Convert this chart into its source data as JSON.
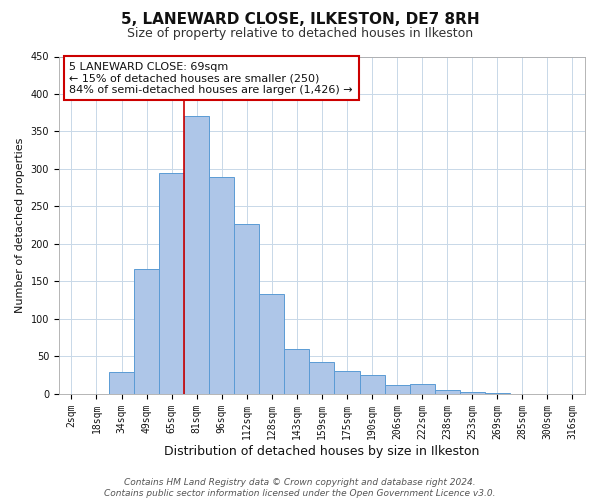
{
  "title": "5, LANEWARD CLOSE, ILKESTON, DE7 8RH",
  "subtitle": "Size of property relative to detached houses in Ilkeston",
  "xlabel": "Distribution of detached houses by size in Ilkeston",
  "ylabel": "Number of detached properties",
  "categories": [
    "2sqm",
    "18sqm",
    "34sqm",
    "49sqm",
    "65sqm",
    "81sqm",
    "96sqm",
    "112sqm",
    "128sqm",
    "143sqm",
    "159sqm",
    "175sqm",
    "190sqm",
    "206sqm",
    "222sqm",
    "238sqm",
    "253sqm",
    "269sqm",
    "285sqm",
    "300sqm",
    "316sqm"
  ],
  "values": [
    0,
    0,
    29,
    167,
    295,
    370,
    289,
    226,
    133,
    60,
    43,
    30,
    25,
    12,
    13,
    5,
    3,
    1,
    0,
    0,
    0
  ],
  "bar_color": "#aec6e8",
  "bar_edge_color": "#5b9bd5",
  "background_color": "#ffffff",
  "grid_color": "#c8d8e8",
  "vline_x_index": 4.5,
  "vline_color": "#cc0000",
  "annotation_line1": "5 LANEWARD CLOSE: 69sqm",
  "annotation_line2": "← 15% of detached houses are smaller (250)",
  "annotation_line3": "84% of semi-detached houses are larger (1,426) →",
  "annotation_box_color": "#ffffff",
  "annotation_box_edge": "#cc0000",
  "ylim": [
    0,
    450
  ],
  "yticks": [
    0,
    50,
    100,
    150,
    200,
    250,
    300,
    350,
    400,
    450
  ],
  "footer_line1": "Contains HM Land Registry data © Crown copyright and database right 2024.",
  "footer_line2": "Contains public sector information licensed under the Open Government Licence v3.0.",
  "title_fontsize": 11,
  "subtitle_fontsize": 9,
  "xlabel_fontsize": 9,
  "ylabel_fontsize": 8,
  "tick_fontsize": 7,
  "annotation_fontsize": 8,
  "footer_fontsize": 6.5
}
